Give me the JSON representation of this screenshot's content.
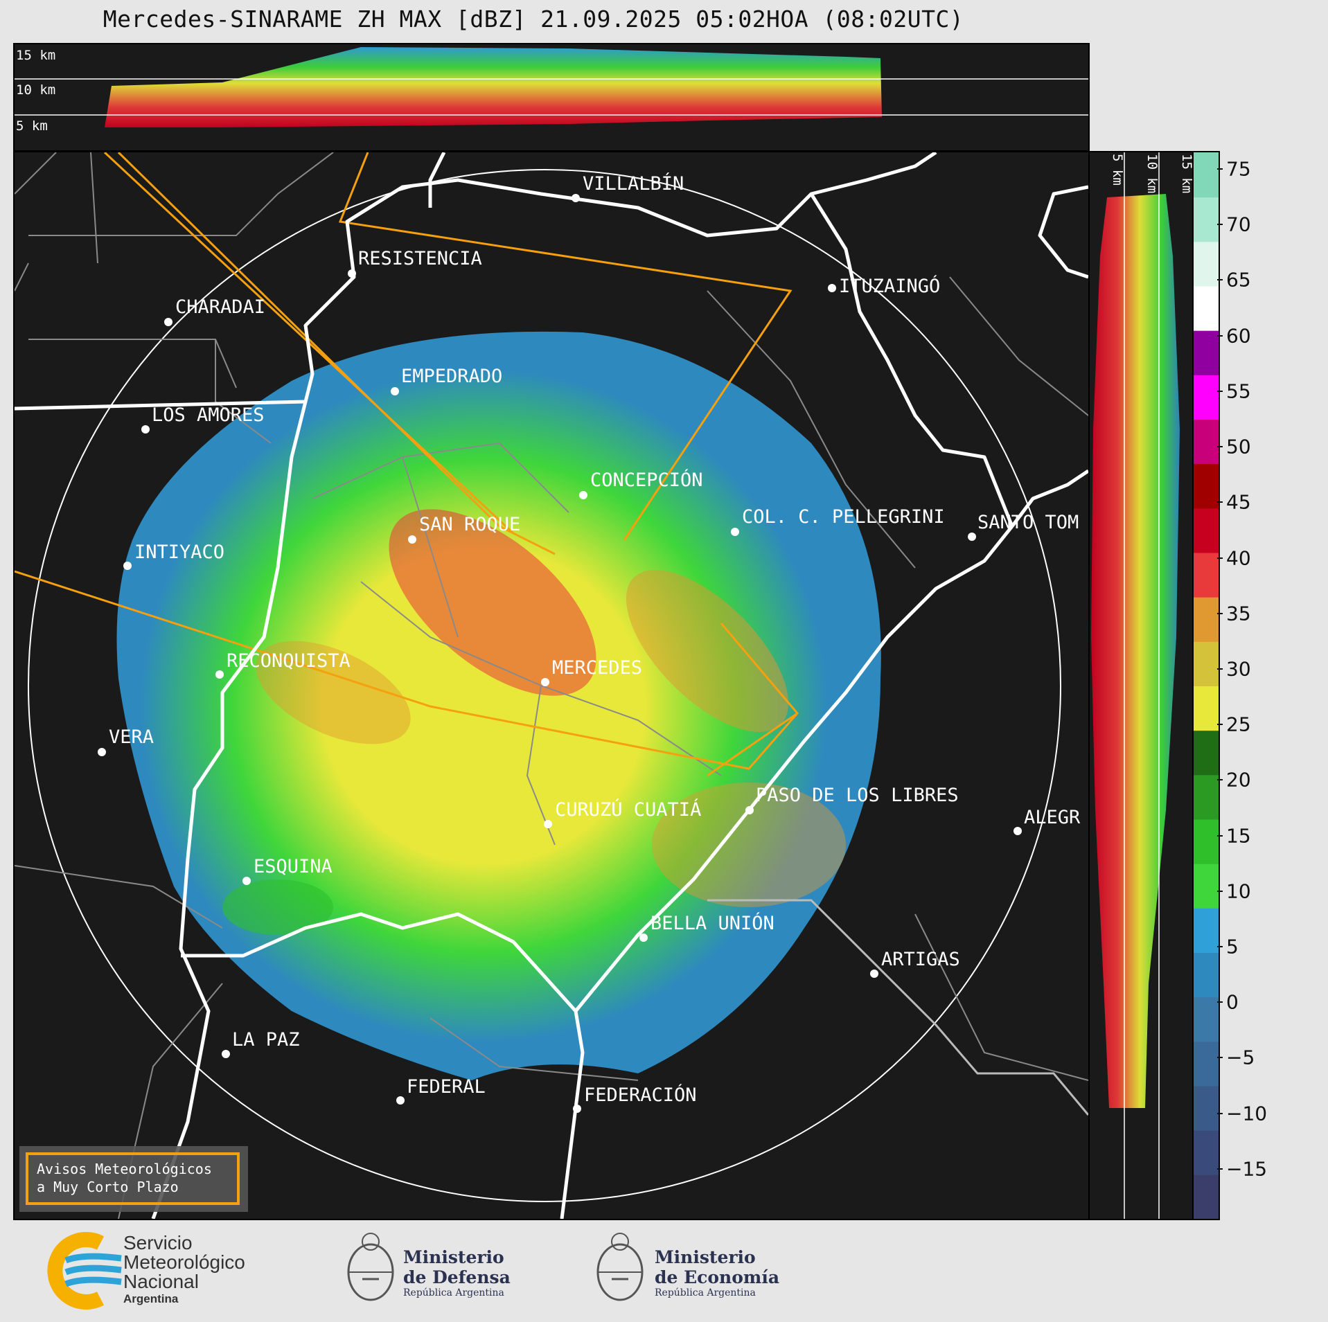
{
  "title": "Mercedes-SINARAME ZH MAX [dBZ] 21.09.2025 05:02HOA (08:02UTC)",
  "top_panel": {
    "height_labels": [
      "15 km",
      "10 km",
      "5 km"
    ]
  },
  "side_panel": {
    "height_labels": [
      "5 km",
      "10 km",
      "15 km"
    ]
  },
  "map": {
    "radar_site": "MERCEDES",
    "cities": [
      {
        "name": "VILLALBÍN"
      },
      {
        "name": "RESISTENCIA"
      },
      {
        "name": "ITUZAINGÓ"
      },
      {
        "name": "CHARADAI"
      },
      {
        "name": "EMPEDRADO"
      },
      {
        "name": "LOS AMORES"
      },
      {
        "name": "CONCEPCIÓN"
      },
      {
        "name": "SAN ROQUE"
      },
      {
        "name": "COL. C. PELLEGRINI"
      },
      {
        "name": "SANTO TOM"
      },
      {
        "name": "INTIYACO"
      },
      {
        "name": "RECONQUISTA"
      },
      {
        "name": "VERA"
      },
      {
        "name": "CURUZÚ CUATIÁ"
      },
      {
        "name": "PASO DE LOS LIBRES"
      },
      {
        "name": "ALEGR"
      },
      {
        "name": "ESQUINA"
      },
      {
        "name": "BELLA UNIÓN"
      },
      {
        "name": "ARTIGAS"
      },
      {
        "name": "LA PAZ"
      },
      {
        "name": "FEDERAL"
      },
      {
        "name": "FEDERACIÓN"
      }
    ],
    "warning_box": [
      "Avisos Meteorológicos",
      "a Muy Corto Plazo"
    ]
  },
  "colorbar": {
    "unit": "dBZ",
    "ticks": [
      "75",
      "70",
      "65",
      "60",
      "55",
      "50",
      "45",
      "40",
      "35",
      "30",
      "25",
      "20",
      "15",
      "10",
      "5",
      "0",
      "−5",
      "−10",
      "−15"
    ],
    "range": [
      -19.5,
      76.5
    ],
    "colors": [
      "#3b3d6b",
      "#3a4a7a",
      "#3a5a8a",
      "#3a6a99",
      "#3a79a8",
      "#2e89bf",
      "#2fa0d8",
      "#3fd63b",
      "#2fbf2b",
      "#2a9a22",
      "#1f6e16",
      "#e8e83a",
      "#d4c23a",
      "#e09830",
      "#e83a3a",
      "#c80020",
      "#a00000",
      "#c8007a",
      "#ff00ff",
      "#9000a0",
      "#ffffff",
      "#e0f5ec",
      "#a8e8d0",
      "#80d8b8"
    ]
  },
  "footer": {
    "smn": [
      "Servicio",
      "Meteorológico",
      "Nacional",
      "Argentina"
    ],
    "defensa": [
      "Ministerio",
      "de Defensa",
      "República Argentina"
    ],
    "economia": [
      "Ministerio",
      "de Economía",
      "República Argentina"
    ]
  }
}
